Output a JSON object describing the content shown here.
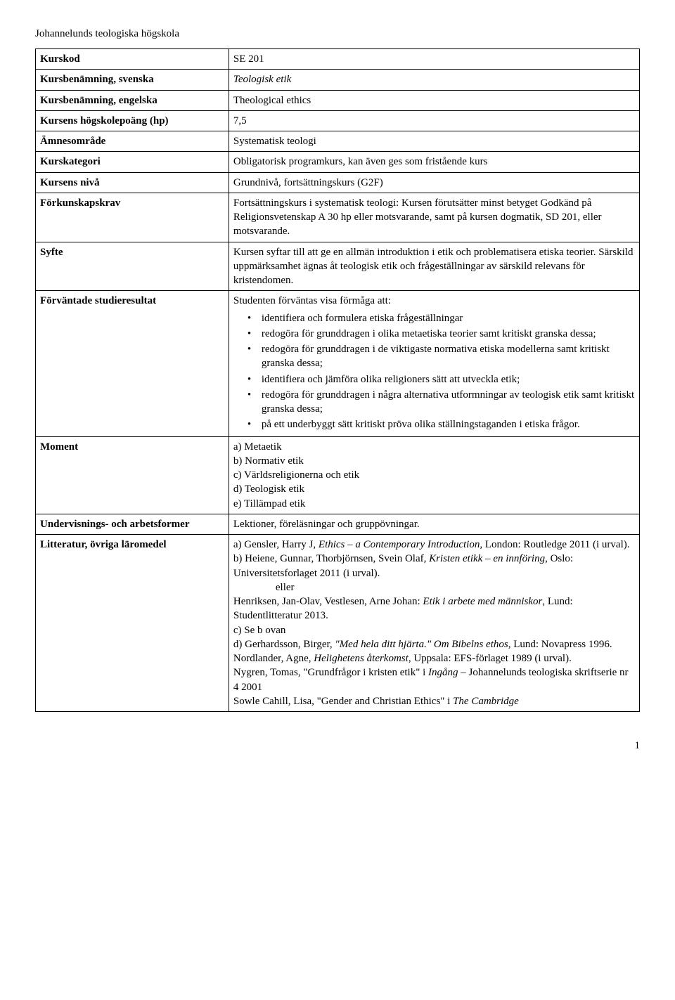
{
  "page_title": "Johannelunds teologiska högskola",
  "page_number": "1",
  "rows": {
    "kurskod": {
      "label": "Kurskod",
      "value": "SE 201"
    },
    "svenska": {
      "label": "Kursbenämning, svenska",
      "value": "Teologisk etik"
    },
    "engelska": {
      "label": "Kursbenämning, engelska",
      "value": "Theological ethics"
    },
    "hp": {
      "label": "Kursens högskolepoäng (hp)",
      "value": "7,5"
    },
    "amnesomrade": {
      "label": "Ämnesområde",
      "value": "Systematisk teologi"
    },
    "kurskategori": {
      "label": "Kurskategori",
      "value": "Obligatorisk programkurs, kan även ges som fristående kurs"
    },
    "niva": {
      "label": "Kursens nivå",
      "value": "Grundnivå, fortsättningskurs (G2F)"
    },
    "forkunskap": {
      "label": "Förkunskapskrav",
      "value": "Fortsättningskurs i systematisk teologi: Kursen förutsätter minst betyget Godkänd på Religionsvetenskap A 30 hp eller motsvarande, samt på kursen dogmatik, SD 201, eller motsvarande."
    },
    "syfte": {
      "label": "Syfte",
      "value": "Kursen syftar till att ge en allmän introduktion i etik och problematisera etiska teorier. Särskild uppmärksamhet ägnas åt teologisk etik och frågeställningar av särskild relevans för kristendomen."
    },
    "forvantade": {
      "label": "Förväntade studieresultat",
      "intro": "Studenten förväntas visa förmåga att:",
      "items": [
        "identifiera och formulera etiska frågeställningar",
        "redogöra för grunddragen i olika metaetiska teorier samt kritiskt granska dessa;",
        "redogöra för grunddragen i de viktigaste normativa etiska modellerna samt kritiskt granska dessa;",
        "identifiera och jämföra olika religioners sätt att utveckla etik;",
        "redogöra för grunddragen i några alternativa utformningar av teologisk etik samt kritiskt granska dessa;",
        "på ett underbyggt sätt kritiskt pröva olika ställningstaganden i etiska frågor."
      ]
    },
    "moment": {
      "label": "Moment",
      "lines": [
        "a) Metaetik",
        "b) Normativ etik",
        "c) Världsreligionerna och etik",
        "d) Teologisk etik",
        "e) Tillämpad etik"
      ]
    },
    "undervisning": {
      "label": "Undervisnings- och arbetsformer",
      "value": "Lektioner, föreläsningar och  gruppövningar."
    },
    "litteratur": {
      "label": "Litteratur, övriga läromedel",
      "a_pre": "a) Gensler, Harry J, ",
      "a_it": "Ethics – a Contemporary Introduction",
      "a_post": ", London: Routledge 2011 (i urval).",
      "b_pre": "b) Heiene, Gunnar, Thorbjörnsen, Svein Olaf, ",
      "b_it": "Kristen etikk – en innföring",
      "b_post": ", Oslo: Universitetsforlaget 2011 (i urval).",
      "eller": "eller",
      "h_pre": "Henriksen, Jan-Olav, Vestlesen, Arne Johan: ",
      "h_it": "Etik i arbete med människor",
      "h_post": ", Lund: Studentlitteratur 2013.",
      "c": "c) Se b ovan",
      "d_pre": "d) Gerhardsson, Birger, ",
      "d_it": "\"Med hela ditt hjärta.\" Om Bibelns ethos",
      "d_post": ", Lund: Novapress 1996.",
      "n_pre": "Nordlander, Agne, ",
      "n_it": "Helighetens återkomst",
      "n_post": ", Uppsala: EFS-förlaget 1989 (i urval).",
      "ny_pre": "Nygren, Tomas, \"Grundfrågor i kristen etik\" i ",
      "ny_it": "Ingång",
      "ny_post": " – Johannelunds teologiska skriftserie nr 4 2001",
      "s_pre": "Sowle Cahill, Lisa, \"Gender and Christian Ethics\" i ",
      "s_it": "The Cambridge"
    }
  }
}
